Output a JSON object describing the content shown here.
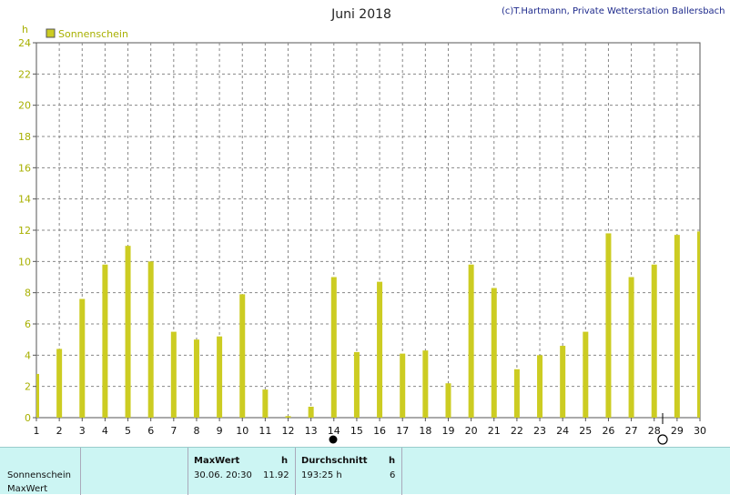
{
  "chart_data": {
    "type": "bar",
    "title": "Juni 2018",
    "copyright": "(c)T.Hartmann, Private Wetterstation Ballersbach",
    "ylabel": "h",
    "ylim": [
      0,
      24
    ],
    "yticks": [
      "0",
      "2",
      "4",
      "6",
      "8",
      "10",
      "12",
      "14",
      "16",
      "18",
      "20",
      "22",
      "24"
    ],
    "categories": [
      "1",
      "2",
      "3",
      "4",
      "5",
      "6",
      "7",
      "8",
      "9",
      "10",
      "11",
      "12",
      "13",
      "14",
      "15",
      "16",
      "17",
      "18",
      "19",
      "20",
      "21",
      "22",
      "23",
      "24",
      "25",
      "26",
      "27",
      "28",
      "29",
      "30"
    ],
    "grid": true,
    "legend_position": "top-left",
    "series": [
      {
        "name": "Sonnenschein",
        "color": "#cccc22",
        "values": [
          2.8,
          4.4,
          7.6,
          9.8,
          11.0,
          10.0,
          5.5,
          5.0,
          5.2,
          7.9,
          1.8,
          0.1,
          0.7,
          9.0,
          4.2,
          8.7,
          4.1,
          4.3,
          2.2,
          9.8,
          8.3,
          3.1,
          4.0,
          4.6,
          5.5,
          11.8,
          9.0,
          9.8,
          11.7,
          11.92
        ]
      }
    ]
  },
  "summary": {
    "row_label_1": "Sonnenschein",
    "row_label_2": "MaxWert",
    "max_header": "MaxWert",
    "max_unit": "h",
    "max_datetime": "30.06.  20:30",
    "max_value": "11.92",
    "avg_header": "Durchschnitt",
    "avg_unit": "h",
    "avg_value": "193:25 h",
    "avg_count": "6"
  }
}
